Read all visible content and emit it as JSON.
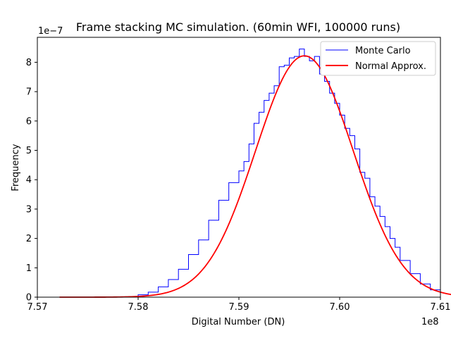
{
  "chart_data": {
    "type": "line",
    "title": "Frame stacking MC simulation. (60min WFI, 100000 runs)",
    "xlabel": "Digital Number (DN)",
    "ylabel": "Frequency",
    "x_offset_label": "1e8",
    "y_offset_label": "1e−7",
    "x_scale": 100000000,
    "y_scale": 1e-07,
    "xlim": [
      757.0,
      761.0
    ],
    "ylim": [
      0,
      8.85
    ],
    "x_ticks": [
      757.0,
      758.0,
      759.0,
      760.0,
      761.0
    ],
    "x_tick_labels": [
      "7.57",
      "7.58",
      "7.59",
      "7.60",
      "7.61"
    ],
    "y_ticks": [
      0,
      1,
      2,
      3,
      4,
      5,
      6,
      7,
      8
    ],
    "y_tick_labels": [
      "0",
      "1",
      "2",
      "3",
      "4",
      "5",
      "6",
      "7",
      "8"
    ],
    "grid": false,
    "legend_position": "top-right",
    "series": [
      {
        "name": "Monte Carlo",
        "style": "step-histogram",
        "color": "#0000ff",
        "bin_edges": [
          758.0,
          758.1,
          758.2,
          758.3,
          758.4,
          758.5,
          758.6,
          758.7,
          758.8,
          758.9,
          759.0,
          759.05,
          759.1,
          759.15,
          759.2,
          759.25,
          759.3,
          759.35,
          759.4,
          759.45,
          759.5,
          759.55,
          759.6,
          759.65,
          759.7,
          759.75,
          759.8,
          759.85,
          759.9,
          759.95,
          760.0,
          760.05,
          760.1,
          760.15,
          760.2,
          760.25,
          760.3,
          760.35,
          760.4,
          760.45,
          760.5,
          760.55,
          760.6,
          760.7,
          760.8,
          760.9,
          761.0
        ],
        "heights": [
          0.08,
          0.17,
          0.35,
          0.6,
          0.95,
          1.45,
          1.95,
          2.62,
          3.3,
          3.9,
          4.3,
          4.62,
          5.22,
          5.92,
          6.3,
          6.7,
          6.95,
          7.2,
          7.85,
          7.9,
          8.15,
          8.2,
          8.45,
          8.2,
          8.05,
          8.2,
          7.6,
          7.35,
          6.95,
          6.6,
          6.2,
          5.75,
          5.5,
          5.05,
          4.25,
          4.05,
          3.42,
          3.1,
          2.75,
          2.4,
          2.0,
          1.7,
          1.25,
          0.8,
          0.45,
          0.25
        ]
      },
      {
        "name": "Normal Approx.",
        "style": "line",
        "color": "#ff0000",
        "mean": 759.65,
        "sigma": 0.485,
        "peak": 8.22,
        "x_range": [
          757.22,
          761.72
        ]
      }
    ]
  }
}
